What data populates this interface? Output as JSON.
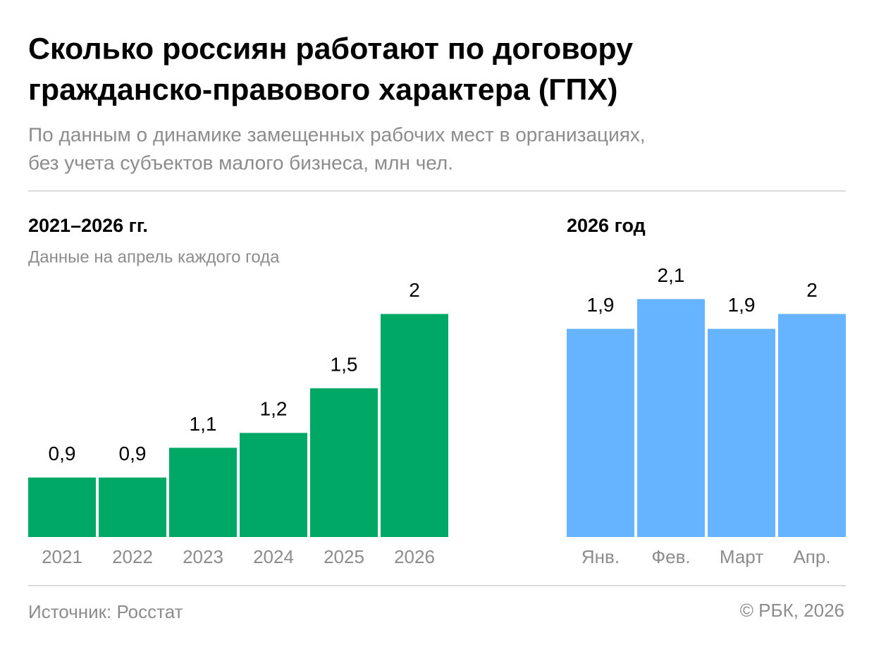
{
  "header": {
    "title": [
      "Сколько россиян работают по договору",
      "гражданско-правового характера (ГПХ)"
    ],
    "subtitle": [
      "По данным о динамике замещенных рабочих мест в организациях,",
      "без учета субъектов малого бизнеса, млн чел."
    ]
  },
  "chart_data": [
    {
      "type": "bar",
      "title": "2021–2026 гг.",
      "subtitle": "Данные на апрель каждого года",
      "categories": [
        "2021",
        "2022",
        "2023",
        "2024",
        "2025",
        "2026"
      ],
      "values": [
        0.9,
        0.9,
        1.1,
        1.2,
        1.5,
        2
      ],
      "value_labels": [
        "0,9",
        "0,9",
        "1,1",
        "1,2",
        "1,5",
        "2"
      ],
      "color": "#00a866",
      "ylim": [
        0.5,
        2.5
      ]
    },
    {
      "type": "bar",
      "title": "2026 год",
      "categories": [
        "Янв.",
        "Фев.",
        "Март",
        "Апр."
      ],
      "values": [
        1.9,
        2.1,
        1.9,
        2
      ],
      "value_labels": [
        "1,9",
        "2,1",
        "1,9",
        "2"
      ],
      "color": "#66b3ff",
      "ylim": [
        0.5,
        2.5
      ]
    }
  ],
  "footer": {
    "source": "Источник: Росстат",
    "copyright": "© РБК, 2026"
  }
}
